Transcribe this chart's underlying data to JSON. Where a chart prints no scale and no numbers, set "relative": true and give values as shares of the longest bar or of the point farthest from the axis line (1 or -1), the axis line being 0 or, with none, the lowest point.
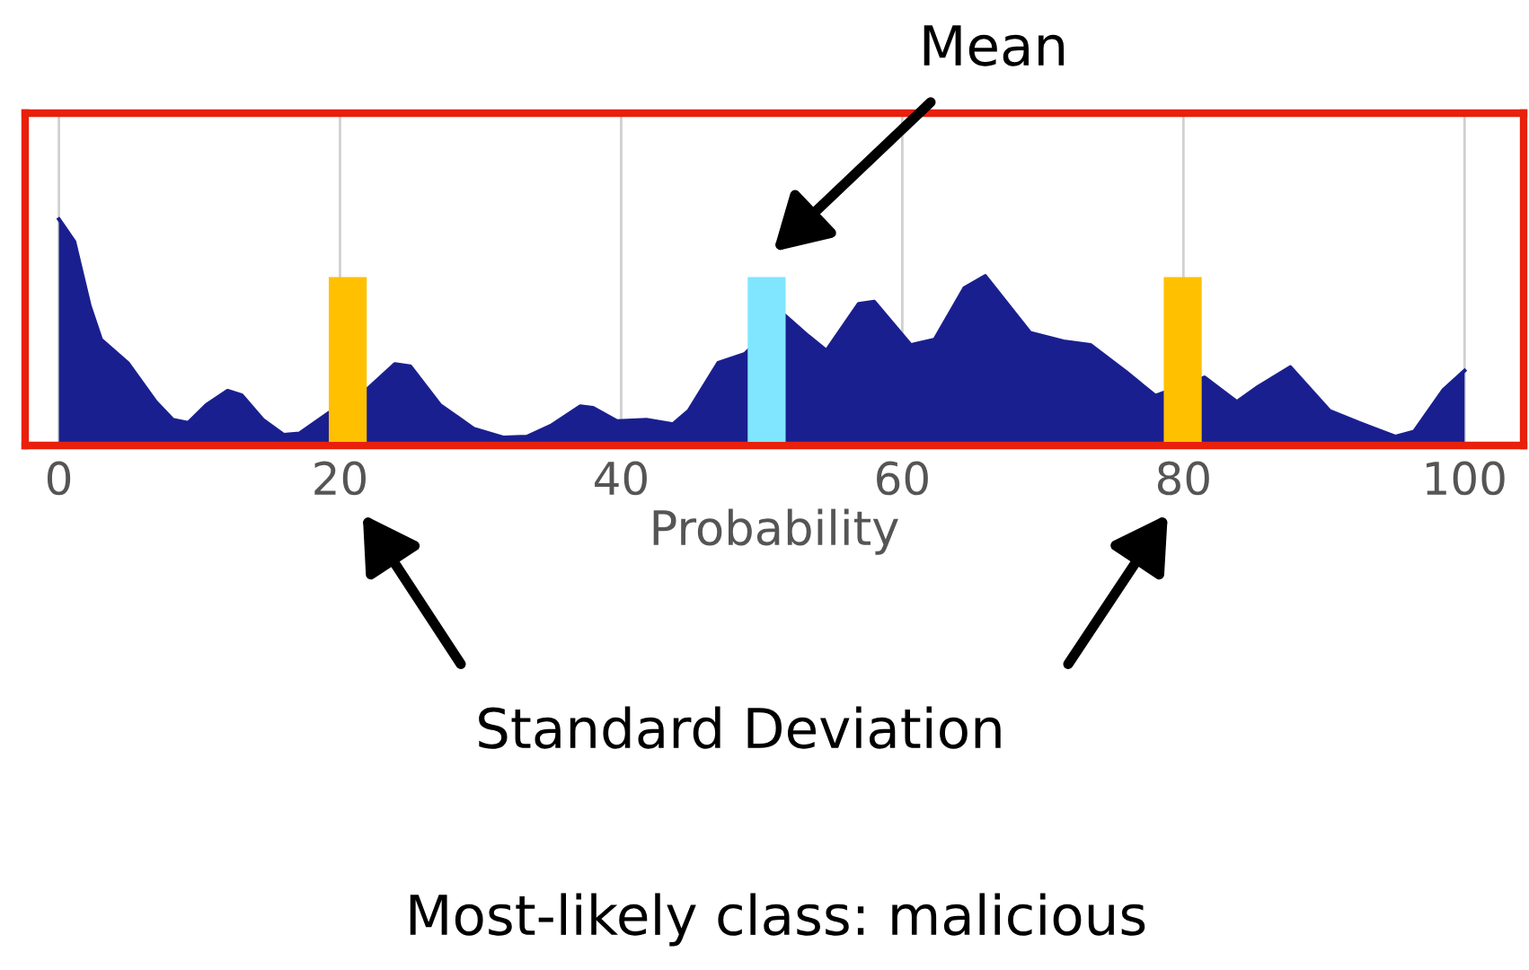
{
  "chart_data": {
    "type": "area",
    "relative": true,
    "xlabel": "Probability",
    "x": [
      0,
      1.1,
      2.2,
      3.0,
      4.9,
      6.9,
      8.1,
      9.2,
      10.5,
      12.0,
      13.0,
      14.5,
      16.0,
      17.1,
      19.2,
      22.0,
      23.9,
      25.0,
      27.1,
      29.5,
      31.6,
      33.3,
      35.0,
      37.1,
      38.0,
      39.7,
      41.8,
      43.7,
      44.8,
      46.9,
      48.8,
      51.6,
      53.3,
      54.6,
      56.9,
      58.0,
      60.6,
      62.3,
      64.4,
      65.9,
      69.1,
      71.6,
      73.4,
      75.9,
      78.0,
      81.5,
      83.8,
      85.3,
      87.6,
      90.4,
      92.5,
      95.1,
      96.4,
      98.5,
      100.0
    ],
    "series": [
      {
        "color": "#1a1f8f",
        "values": [
          1.0,
          0.9,
          0.61,
          0.46,
          0.355,
          0.18,
          0.1,
          0.086,
          0.167,
          0.23,
          0.21,
          0.1,
          0.032,
          0.038,
          0.13,
          0.24,
          0.35,
          0.34,
          0.167,
          0.06,
          0.02,
          0.024,
          0.073,
          0.16,
          0.153,
          0.094,
          0.1,
          0.08,
          0.14,
          0.355,
          0.395,
          0.57,
          0.476,
          0.41,
          0.62,
          0.63,
          0.435,
          0.46,
          0.69,
          0.745,
          0.49,
          0.45,
          0.435,
          0.315,
          0.207,
          0.29,
          0.18,
          0.247,
          0.336,
          0.14,
          0.086,
          0.024,
          0.046,
          0.234,
          0.32
        ]
      }
    ],
    "xlim": [
      -2.4,
      104.2
    ],
    "xticks": [
      0,
      20,
      40,
      60,
      80,
      100
    ],
    "grid": "x",
    "bands": [
      {
        "axis": "x",
        "from": 19.2,
        "to": 21.9,
        "color": "#ffc000"
      },
      {
        "axis": "x",
        "from": 49.0,
        "to": 51.7,
        "color": "#80e6ff"
      },
      {
        "axis": "x",
        "from": 78.6,
        "to": 81.3,
        "color": "#ffc000"
      }
    ],
    "annotations": [
      "Mean",
      "Standard Deviation",
      "Most-likely class: malicious"
    ]
  }
}
